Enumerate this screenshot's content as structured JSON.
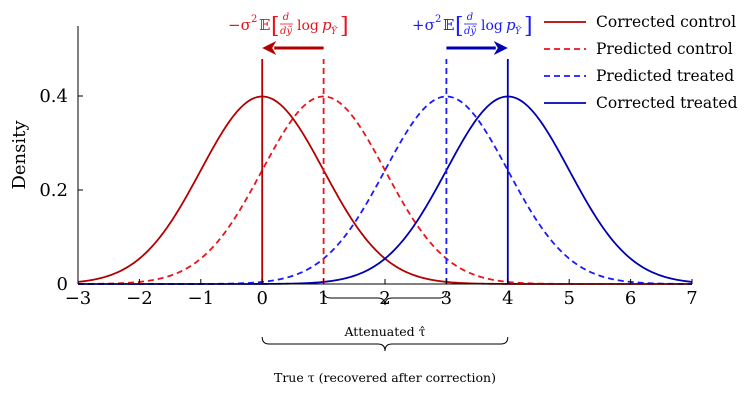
{
  "chart_data": {
    "type": "line",
    "title": "",
    "xlabel": "",
    "ylabel": "Density",
    "xlim": [
      -3,
      7
    ],
    "ylim": [
      0,
      0.55
    ],
    "x_ticks": [
      -3,
      -2,
      -1,
      0,
      1,
      2,
      3,
      4,
      5,
      6,
      7
    ],
    "x_tick_labels": [
      "−3",
      "−2",
      "−1",
      "0",
      "1",
      "2",
      "3",
      "4",
      "5",
      "6",
      "7"
    ],
    "y_ticks": [
      0,
      0.2,
      0.4
    ],
    "y_tick_labels": [
      "0",
      "0.2",
      "0.4"
    ],
    "grid": false,
    "legend_position": "top-right",
    "series": [
      {
        "name": "Corrected control",
        "distribution": "normal",
        "mean": 0,
        "sd": 1,
        "color": "#b30000",
        "style": "solid"
      },
      {
        "name": "Predicted control",
        "distribution": "normal",
        "mean": 1,
        "sd": 1,
        "color": "#e8141c",
        "style": "dashed"
      },
      {
        "name": "Predicted treated",
        "distribution": "normal",
        "mean": 3,
        "sd": 1,
        "color": "#1a1aff",
        "style": "dashed"
      },
      {
        "name": "Corrected treated",
        "distribution": "normal",
        "mean": 4,
        "sd": 1,
        "color": "#0000b3",
        "style": "solid"
      }
    ],
    "vertical_lines": [
      {
        "x": 0,
        "color": "#b30000",
        "style": "solid"
      },
      {
        "x": 1,
        "color": "#e8141c",
        "style": "dashed"
      },
      {
        "x": 3,
        "color": "#1a1aff",
        "style": "dashed"
      },
      {
        "x": 4,
        "color": "#0000b3",
        "style": "solid"
      }
    ],
    "shift_arrows": [
      {
        "from": 1,
        "to": 0,
        "color": "#b30000"
      },
      {
        "from": 3,
        "to": 4,
        "color": "#0000b3"
      }
    ],
    "arrow_labels": {
      "left": {
        "prefix": "−σ",
        "color": "#e8141c"
      },
      "right": {
        "prefix": "+σ",
        "color": "#1a1aff"
      },
      "exp": "2",
      "E": "𝔼",
      "frac_num": "d",
      "frac_den": "dỹ",
      "log": "log",
      "p": "p",
      "p_sub": "Ỹ"
    },
    "braces": [
      {
        "from": 1,
        "to": 3,
        "label": "Attenuated τ̂"
      },
      {
        "from": 0,
        "to": 4,
        "label": "True τ (recovered after correction)"
      }
    ]
  }
}
